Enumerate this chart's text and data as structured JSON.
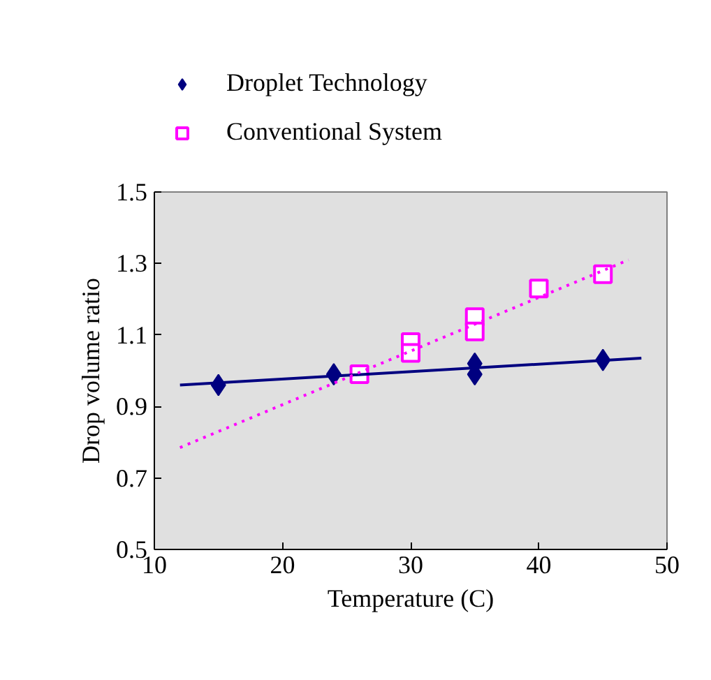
{
  "chart_data": {
    "type": "scatter",
    "xlabel": "Temperature (C)",
    "ylabel": "Drop volume ratio",
    "xlim": [
      10,
      50
    ],
    "xticks": [
      10,
      20,
      30,
      40,
      50
    ],
    "ylim": [
      0.5,
      1.5
    ],
    "yticks": [
      0.5,
      0.7,
      0.9,
      1.1,
      1.3,
      1.5
    ],
    "grid": false,
    "legend": "top",
    "series": [
      {
        "name": "Droplet Technology",
        "color": "#000080",
        "marker": "diamond",
        "x": [
          15,
          24,
          35,
          35,
          45
        ],
        "values": [
          0.96,
          0.99,
          1.02,
          0.99,
          1.03
        ]
      },
      {
        "name": "Conventional System",
        "color": "#ff00ff",
        "marker": "square",
        "x": [
          26,
          30,
          30,
          35,
          35,
          40,
          45
        ],
        "values": [
          0.99,
          1.08,
          1.05,
          1.15,
          1.11,
          1.23,
          1.27
        ]
      },
      {
        "type": "line",
        "color": "#000080",
        "line_style": "solid",
        "x": [
          12,
          48
        ],
        "values": [
          0.96,
          1.035
        ]
      },
      {
        "type": "line",
        "color": "#ff00ff",
        "line_style": "dotted",
        "x": [
          12,
          47
        ],
        "values": [
          0.785,
          1.31
        ]
      }
    ]
  }
}
